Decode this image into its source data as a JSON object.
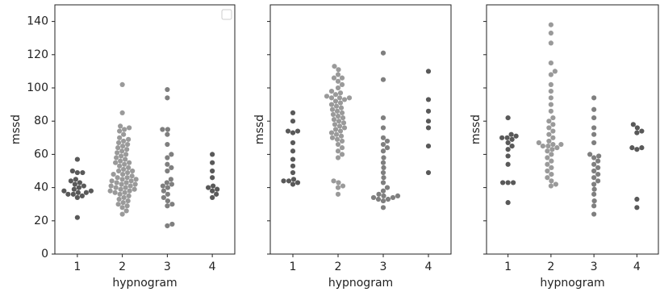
{
  "chart_data": [
    {
      "type": "swarm",
      "xlabel": "hypnogram",
      "ylabel": "mssd",
      "categories": [
        "1",
        "2",
        "3",
        "4"
      ],
      "colors": [
        "#595959",
        "#9a9a9a",
        "#7f7f7f",
        "#595959"
      ],
      "values": [
        [
          57,
          50,
          49,
          49,
          45,
          44,
          43,
          42,
          41,
          40,
          39,
          38,
          38,
          37,
          37,
          36,
          36,
          35,
          34,
          22
        ],
        [
          102,
          85,
          77,
          76,
          75,
          74,
          72,
          70,
          69,
          68,
          67,
          66,
          65,
          64,
          63,
          62,
          61,
          60,
          59,
          58,
          57,
          56,
          55,
          55,
          54,
          53,
          52,
          51,
          50,
          50,
          49,
          48,
          48,
          47,
          46,
          46,
          45,
          45,
          44,
          44,
          43,
          43,
          42,
          42,
          41,
          41,
          40,
          40,
          39,
          39,
          38,
          38,
          37,
          37,
          36,
          35,
          34,
          33,
          32,
          31,
          30,
          29,
          28,
          26,
          24
        ],
        [
          99,
          94,
          75,
          75,
          72,
          66,
          60,
          58,
          54,
          52,
          50,
          45,
          43,
          42,
          41,
          40,
          38,
          36,
          34,
          32,
          30,
          29,
          18,
          17
        ],
        [
          60,
          55,
          50,
          46,
          41,
          40,
          39,
          38,
          36,
          34
        ]
      ],
      "ylim": [
        0,
        150
      ],
      "yticks": [
        0,
        20,
        40,
        60,
        80,
        100,
        120,
        140
      ],
      "ytick_labels": true,
      "legend": "upper right"
    },
    {
      "type": "swarm",
      "xlabel": "hypnogram",
      "ylabel": "mssd",
      "categories": [
        "1",
        "2",
        "3",
        "4"
      ],
      "colors": [
        "#595959",
        "#9a9a9a",
        "#7f7f7f",
        "#595959"
      ],
      "values": [
        [
          85,
          80,
          74,
          74,
          73,
          67,
          62,
          57,
          53,
          49,
          45,
          44,
          44,
          43,
          42
        ],
        [
          113,
          111,
          108,
          106,
          106,
          104,
          102,
          100,
          98,
          97,
          96,
          95,
          94,
          94,
          94,
          93,
          92,
          91,
          90,
          89,
          88,
          87,
          86,
          85,
          84,
          83,
          82,
          81,
          80,
          79,
          78,
          77,
          76,
          75,
          74,
          73,
          72,
          71,
          70,
          69,
          68,
          66,
          64,
          62,
          60,
          58,
          44,
          43,
          41,
          40,
          36
        ],
        [
          121,
          105,
          82,
          76,
          70,
          68,
          66,
          64,
          62,
          58,
          55,
          52,
          49,
          46,
          43,
          40,
          38,
          36,
          35,
          35,
          34,
          34,
          33,
          33,
          32,
          28
        ],
        [
          110,
          93,
          86,
          80,
          76,
          65,
          49
        ]
      ],
      "ylim": [
        0,
        150
      ],
      "yticks": [
        0,
        20,
        40,
        60,
        80,
        100,
        120,
        140
      ],
      "ytick_labels": false
    },
    {
      "type": "swarm",
      "xlabel": "hypnogram",
      "ylabel": "mssd",
      "categories": [
        "1",
        "2",
        "3",
        "4"
      ],
      "colors": [
        "#595959",
        "#9a9a9a",
        "#7f7f7f",
        "#595959"
      ],
      "values": [
        [
          82,
          72,
          71,
          70,
          70,
          69,
          67,
          65,
          63,
          59,
          54,
          43,
          43,
          43,
          31
        ],
        [
          138,
          133,
          127,
          115,
          110,
          108,
          102,
          98,
          94,
          90,
          86,
          82,
          80,
          78,
          76,
          74,
          72,
          70,
          68,
          67,
          66,
          66,
          65,
          65,
          64,
          63,
          62,
          60,
          58,
          56,
          54,
          52,
          50,
          48,
          46,
          44,
          42,
          41
        ],
        [
          94,
          87,
          82,
          76,
          72,
          67,
          60,
          59,
          58,
          56,
          54,
          52,
          50,
          48,
          46,
          44,
          42,
          39,
          36,
          32,
          29,
          24
        ],
        [
          78,
          76,
          74,
          73,
          64,
          64,
          63,
          33,
          28
        ]
      ],
      "ylim": [
        0,
        150
      ],
      "yticks": [
        0,
        20,
        40,
        60,
        80,
        100,
        120,
        140
      ],
      "ytick_labels": false
    }
  ]
}
